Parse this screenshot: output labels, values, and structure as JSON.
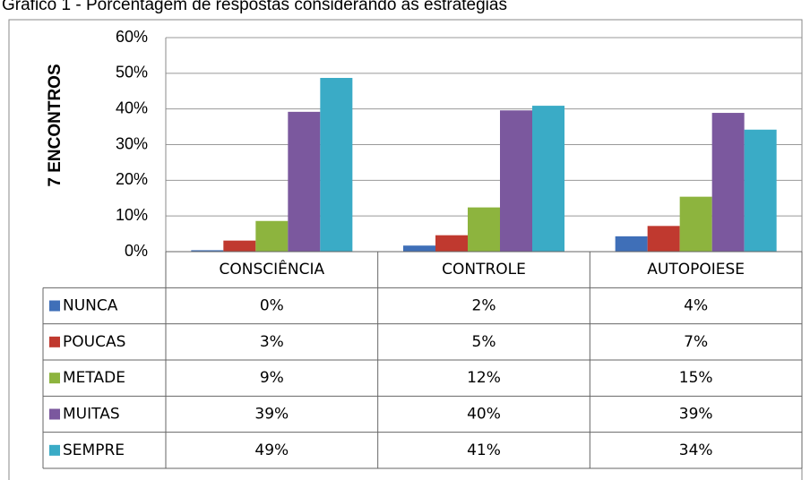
{
  "chart_data": {
    "type": "bar",
    "title": "Gráfico 1 - Porcentagem de respostas considerando as estratégias",
    "y_label": "7 ENCONTROS",
    "categories": [
      "CONSCIÊNCIA",
      "CONTROLE",
      "AUTOPOIESE"
    ],
    "series": [
      {
        "name": "NUNCA",
        "color": "#3f6fb8",
        "values": [
          0.4,
          1.7,
          4.3
        ],
        "value_labels": [
          "0%",
          "2%",
          "4%"
        ]
      },
      {
        "name": "POUCAS",
        "color": "#c0392f",
        "values": [
          3.1,
          4.6,
          7.2
        ],
        "value_labels": [
          "3%",
          "5%",
          "7%"
        ]
      },
      {
        "name": "METADE",
        "color": "#8db43e",
        "values": [
          8.6,
          12.4,
          15.4
        ],
        "value_labels": [
          "9%",
          "12%",
          "15%"
        ]
      },
      {
        "name": "MUITAS",
        "color": "#7b589e",
        "values": [
          39.2,
          39.6,
          38.9
        ],
        "value_labels": [
          "39%",
          "40%",
          "39%"
        ]
      },
      {
        "name": "SEMPRE",
        "color": "#3aabc6",
        "values": [
          48.7,
          40.9,
          34.2
        ],
        "value_labels": [
          "49%",
          "41%",
          "34%"
        ]
      }
    ],
    "ylim": [
      0,
      60
    ],
    "yticks": [
      {
        "value": 0,
        "label": "0%"
      },
      {
        "value": 10,
        "label": "10%"
      },
      {
        "value": 20,
        "label": "20%"
      },
      {
        "value": 30,
        "label": "30%"
      },
      {
        "value": 40,
        "label": "40%"
      },
      {
        "value": 50,
        "label": "50%"
      },
      {
        "value": 60,
        "label": "60%"
      }
    ],
    "grid": true
  }
}
